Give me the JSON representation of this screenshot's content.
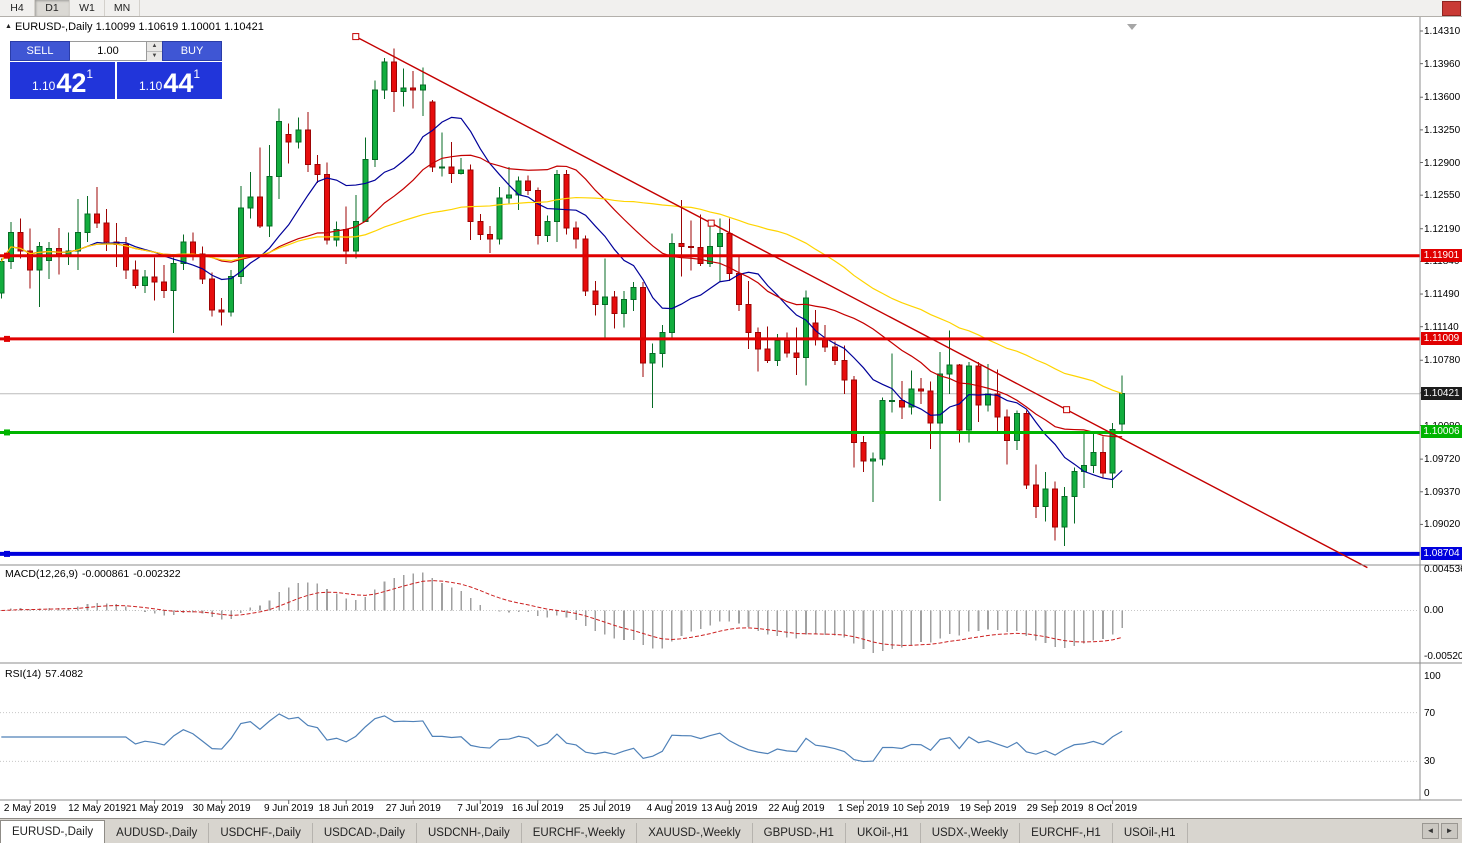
{
  "toolbar": {
    "timeframes": [
      {
        "label": "H4",
        "active": false
      },
      {
        "label": "D1",
        "active": true
      },
      {
        "label": "W1",
        "active": false
      },
      {
        "label": "MN",
        "active": false
      }
    ]
  },
  "chart": {
    "title": "EURUSD-,Daily 1.10099 1.10619 1.10001 1.10421",
    "symbol": "EURUSD-,Daily",
    "ohlc": {
      "open": "1.10099",
      "high": "1.10619",
      "low": "1.10001",
      "close": "1.10421"
    }
  },
  "trade_panel": {
    "sell_label": "SELL",
    "buy_label": "BUY",
    "volume": "1.00",
    "sell_price_prefix": "1.10",
    "sell_price_main": "42",
    "sell_price_sup": "1",
    "buy_price_prefix": "1.10",
    "buy_price_main": "44",
    "buy_price_sup": "1"
  },
  "chart_data": {
    "type": "candlestick",
    "x_scale": {
      "first_x": 1.3,
      "step": 9.58
    },
    "price_scale": {
      "max": 1.14385,
      "min": 1.0866
    },
    "price_ticks": [
      "1.14310",
      "1.13960",
      "1.13600",
      "1.13250",
      "1.12900",
      "1.12550",
      "1.12190",
      "1.11840",
      "1.11490",
      "1.11140",
      "1.10780",
      "1.10430",
      "1.10080",
      "1.09720",
      "1.09370",
      "1.09020"
    ],
    "date_ticks": [
      {
        "bar": 3,
        "label": "2 May 2019"
      },
      {
        "bar": 10,
        "label": "12 May 2019"
      },
      {
        "bar": 16,
        "label": "21 May 2019"
      },
      {
        "bar": 23,
        "label": "30 May 2019"
      },
      {
        "bar": 30,
        "label": "9 Jun 2019"
      },
      {
        "bar": 36,
        "label": "18 Jun 2019"
      },
      {
        "bar": 43,
        "label": "27 Jun 2019"
      },
      {
        "bar": 50,
        "label": "7 Jul 2019"
      },
      {
        "bar": 56,
        "label": "16 Jul 2019"
      },
      {
        "bar": 63,
        "label": "25 Jul 2019"
      },
      {
        "bar": 70,
        "label": "4 Aug 2019"
      },
      {
        "bar": 76,
        "label": "13 Aug 2019"
      },
      {
        "bar": 83,
        "label": "22 Aug 2019"
      },
      {
        "bar": 90,
        "label": "1 Sep 2019"
      },
      {
        "bar": 96,
        "label": "10 Sep 2019"
      },
      {
        "bar": 103,
        "label": "19 Sep 2019"
      },
      {
        "bar": 110,
        "label": "29 Sep 2019"
      },
      {
        "bar": 116,
        "label": "8 Oct 2019"
      }
    ],
    "candles": [
      [
        1.115,
        1.1187,
        1.1144,
        1.1184
      ],
      [
        1.1184,
        1.1226,
        1.1176,
        1.1215
      ],
      [
        1.1215,
        1.123,
        1.1187,
        1.1195
      ],
      [
        1.1195,
        1.1219,
        1.1155,
        1.1175
      ],
      [
        1.1175,
        1.1205,
        1.1135,
        1.12
      ],
      [
        1.1185,
        1.1205,
        1.1165,
        1.1198
      ],
      [
        1.1198,
        1.122,
        1.117,
        1.119
      ],
      [
        1.119,
        1.1215,
        1.118,
        1.1195
      ],
      [
        1.1195,
        1.1251,
        1.1175,
        1.1215
      ],
      [
        1.1215,
        1.1254,
        1.1205,
        1.1235
      ],
      [
        1.1235,
        1.1264,
        1.122,
        1.1225
      ],
      [
        1.1225,
        1.124,
        1.1195,
        1.1205
      ],
      [
        1.1205,
        1.1225,
        1.1178,
        1.1202
      ],
      [
        1.1202,
        1.121,
        1.1165,
        1.1175
      ],
      [
        1.1175,
        1.1185,
        1.1155,
        1.1158
      ],
      [
        1.1158,
        1.1175,
        1.115,
        1.1167
      ],
      [
        1.1167,
        1.1188,
        1.1142,
        1.1162
      ],
      [
        1.1162,
        1.118,
        1.1145,
        1.1153
      ],
      [
        1.1153,
        1.1188,
        1.1107,
        1.1182
      ],
      [
        1.1182,
        1.1213,
        1.1175,
        1.1205
      ],
      [
        1.1205,
        1.1215,
        1.1185,
        1.1192
      ],
      [
        1.1192,
        1.12,
        1.116,
        1.1165
      ],
      [
        1.1165,
        1.1172,
        1.1125,
        1.1132
      ],
      [
        1.1132,
        1.1145,
        1.1115,
        1.113
      ],
      [
        1.113,
        1.1175,
        1.1125,
        1.1168
      ],
      [
        1.1168,
        1.1265,
        1.116,
        1.1241
      ],
      [
        1.1241,
        1.128,
        1.123,
        1.1253
      ],
      [
        1.1253,
        1.1306,
        1.122,
        1.1222
      ],
      [
        1.1222,
        1.1309,
        1.121,
        1.1275
      ],
      [
        1.1275,
        1.1348,
        1.1251,
        1.1334
      ],
      [
        1.132,
        1.1332,
        1.1289,
        1.1312
      ],
      [
        1.1312,
        1.1338,
        1.1305,
        1.1325
      ],
      [
        1.1325,
        1.1344,
        1.128,
        1.1288
      ],
      [
        1.1288,
        1.1298,
        1.1268,
        1.1277
      ],
      [
        1.1277,
        1.129,
        1.1202,
        1.1207
      ],
      [
        1.1207,
        1.1227,
        1.12,
        1.1218
      ],
      [
        1.1218,
        1.1243,
        1.1181,
        1.1195
      ],
      [
        1.1195,
        1.1255,
        1.1187,
        1.1227
      ],
      [
        1.1227,
        1.1317,
        1.1226,
        1.1293
      ],
      [
        1.1293,
        1.1378,
        1.1285,
        1.1368
      ],
      [
        1.1368,
        1.1402,
        1.1358,
        1.1398
      ],
      [
        1.1398,
        1.1412,
        1.1344,
        1.1366
      ],
      [
        1.1366,
        1.1391,
        1.135,
        1.137
      ],
      [
        1.137,
        1.1388,
        1.1348,
        1.1368
      ],
      [
        1.1368,
        1.1392,
        1.134,
        1.1373
      ],
      [
        1.1355,
        1.1357,
        1.128,
        1.1285
      ],
      [
        1.1285,
        1.1322,
        1.1275,
        1.1285
      ],
      [
        1.1285,
        1.1312,
        1.1268,
        1.1278
      ],
      [
        1.1278,
        1.1295,
        1.1277,
        1.1282
      ],
      [
        1.1282,
        1.1288,
        1.1207,
        1.1227
      ],
      [
        1.1227,
        1.1235,
        1.1207,
        1.1213
      ],
      [
        1.1213,
        1.1222,
        1.1193,
        1.1208
      ],
      [
        1.1208,
        1.1264,
        1.1202,
        1.1252
      ],
      [
        1.1252,
        1.1285,
        1.1245,
        1.1255
      ],
      [
        1.1255,
        1.1275,
        1.1239,
        1.127
      ],
      [
        1.127,
        1.1276,
        1.1255,
        1.126
      ],
      [
        1.126,
        1.1263,
        1.1202,
        1.1212
      ],
      [
        1.1212,
        1.1233,
        1.1205,
        1.1227
      ],
      [
        1.1227,
        1.1282,
        1.1205,
        1.1277
      ],
      [
        1.1277,
        1.1282,
        1.1213,
        1.122
      ],
      [
        1.122,
        1.1227,
        1.1198,
        1.1208
      ],
      [
        1.1208,
        1.1212,
        1.1147,
        1.1152
      ],
      [
        1.1152,
        1.1163,
        1.1126,
        1.1138
      ],
      [
        1.1138,
        1.1187,
        1.1101,
        1.1146
      ],
      [
        1.1146,
        1.1152,
        1.1112,
        1.1128
      ],
      [
        1.1128,
        1.1152,
        1.1113,
        1.1143
      ],
      [
        1.1143,
        1.1162,
        1.1131,
        1.1156
      ],
      [
        1.1156,
        1.1162,
        1.106,
        1.1075
      ],
      [
        1.1075,
        1.1096,
        1.1027,
        1.1085
      ],
      [
        1.1085,
        1.1116,
        1.107,
        1.1108
      ],
      [
        1.1108,
        1.1214,
        1.1101,
        1.1203
      ],
      [
        1.1203,
        1.125,
        1.1168,
        1.12
      ],
      [
        1.12,
        1.1228,
        1.1174,
        1.1199
      ],
      [
        1.1199,
        1.1234,
        1.1179,
        1.1182
      ],
      [
        1.1182,
        1.1224,
        1.1178,
        1.12
      ],
      [
        1.12,
        1.123,
        1.1162,
        1.1214
      ],
      [
        1.1214,
        1.123,
        1.1163,
        1.1171
      ],
      [
        1.1171,
        1.1191,
        1.1131,
        1.1138
      ],
      [
        1.1138,
        1.1163,
        1.109,
        1.1108
      ],
      [
        1.1108,
        1.1113,
        1.1066,
        1.109
      ],
      [
        1.109,
        1.1114,
        1.1075,
        1.1078
      ],
      [
        1.1078,
        1.1106,
        1.1072,
        1.1099
      ],
      [
        1.1099,
        1.1108,
        1.1081,
        1.1086
      ],
      [
        1.1086,
        1.1113,
        1.1062,
        1.1081
      ],
      [
        1.1081,
        1.1153,
        1.1051,
        1.1145
      ],
      [
        1.1118,
        1.1132,
        1.1094,
        1.1101
      ],
      [
        1.1101,
        1.1116,
        1.1087,
        1.1092
      ],
      [
        1.1092,
        1.1098,
        1.1073,
        1.1078
      ],
      [
        1.1078,
        1.1094,
        1.1042,
        1.1057
      ],
      [
        1.1057,
        1.1061,
        1.0963,
        1.099
      ],
      [
        1.099,
        1.0997,
        1.0958,
        1.097
      ],
      [
        1.097,
        1.0979,
        1.0926,
        1.0972
      ],
      [
        1.0972,
        1.1038,
        1.0965,
        1.1035
      ],
      [
        1.1035,
        1.1085,
        1.1022,
        1.1035
      ],
      [
        1.1035,
        1.1056,
        1.1015,
        1.1028
      ],
      [
        1.1028,
        1.1067,
        1.102,
        1.1047
      ],
      [
        1.1047,
        1.1059,
        1.1031,
        1.1045
      ],
      [
        1.1045,
        1.1055,
        1.0983,
        1.1011
      ],
      [
        1.1011,
        1.1087,
        1.0927,
        1.1063
      ],
      [
        1.1063,
        1.111,
        1.1042,
        1.1073
      ],
      [
        1.1073,
        1.1074,
        1.099,
        1.1003
      ],
      [
        1.1003,
        1.1076,
        1.099,
        1.1072
      ],
      [
        1.1072,
        1.1076,
        1.1012,
        1.103
      ],
      [
        1.103,
        1.1074,
        1.1023,
        1.1042
      ],
      [
        1.1042,
        1.1068,
        1.1,
        1.1017
      ],
      [
        1.1017,
        1.1025,
        1.0966,
        1.0992
      ],
      [
        1.0992,
        1.1024,
        1.0982,
        1.1021
      ],
      [
        1.1021,
        1.1024,
        1.094,
        1.0944
      ],
      [
        1.0944,
        1.0966,
        1.0909,
        1.0921
      ],
      [
        1.0921,
        1.0958,
        1.0905,
        1.094
      ],
      [
        1.094,
        1.0948,
        1.0885,
        1.0899
      ],
      [
        1.0899,
        1.0942,
        1.0879,
        1.0932
      ],
      [
        1.0932,
        1.0963,
        1.0903,
        1.0959
      ],
      [
        1.0959,
        1.0999,
        1.0941,
        1.0965
      ],
      [
        1.0965,
        1.0999,
        1.0957,
        1.0979
      ],
      [
        1.0979,
        1.0996,
        1.0952,
        1.0957
      ],
      [
        1.0957,
        1.1011,
        1.0941,
        1.1004
      ],
      [
        1.10099,
        1.10619,
        1.10001,
        1.10421
      ]
    ],
    "candle_colors": {
      "up": "#12ad3e",
      "up_edge": "#076b26",
      "down": "#e70d0d",
      "down_edge": "#9d0404"
    },
    "moving_averages": [
      {
        "period": 10,
        "color": "#000099"
      },
      {
        "period": 22,
        "color": "#c40000"
      },
      {
        "period": 45,
        "color": "#ffd400"
      }
    ],
    "hlines": [
      {
        "price": 1.11901,
        "label": "1.11901",
        "color": "#e00000",
        "thickness": 3
      },
      {
        "price": 1.11009,
        "label": "1.11009",
        "color": "#e00000",
        "thickness": 3
      },
      {
        "price": 1.10006,
        "label": "1.10006",
        "color": "#00b400",
        "thickness": 3
      },
      {
        "price": 1.08704,
        "label": "1.08704",
        "color": "#0000dd",
        "thickness": 4
      }
    ],
    "current_price": {
      "value": 1.10421,
      "label": "1.10421",
      "badge_color": "#1c1c1c",
      "line_color": "#bcbcbc"
    },
    "trendline": {
      "color": "#c40000",
      "p1": {
        "bar": 37,
        "price": 1.1425
      },
      "p2": {
        "bar": 111.2,
        "price": 1.1025
      },
      "extend_bar": 142.6
    }
  },
  "macd": {
    "label": "MACD(12,26,9)",
    "value_main": "-0.000861",
    "value_signal": "-0.002322",
    "fast": 12,
    "slow": 26,
    "signal": 9,
    "scale_max": 0.004536,
    "scale_min": -0.005205,
    "scale_labels": [
      "0.004536",
      "0.00",
      "-0.005205"
    ],
    "histogram_color": "#a0a0a0",
    "signal_color": "#cc2222"
  },
  "rsi": {
    "label": "RSI(14)",
    "value": "57.4082",
    "period": 14,
    "levels": [
      70,
      30
    ],
    "scale_labels": [
      "100",
      "70",
      "30",
      "0"
    ],
    "line_color": "#4f81b8"
  },
  "tabs": [
    {
      "label": "EURUSD-,Daily",
      "active": true
    },
    {
      "label": "AUDUSD-,Daily",
      "active": false
    },
    {
      "label": "USDCHF-,Daily",
      "active": false
    },
    {
      "label": "USDCAD-,Daily",
      "active": false
    },
    {
      "label": "USDCNH-,Daily",
      "active": false
    },
    {
      "label": "EURCHF-,Weekly",
      "active": false
    },
    {
      "label": "XAUUSD-,Weekly",
      "active": false
    },
    {
      "label": "GBPUSD-,H1",
      "active": false
    },
    {
      "label": "UKOil-,H1",
      "active": false
    },
    {
      "label": "USDX-,Weekly",
      "active": false
    },
    {
      "label": "EURCHF-,H1",
      "active": false
    },
    {
      "label": "USOil-,H1",
      "active": false
    }
  ],
  "tab_arrows": {
    "left": "◄",
    "right": "►"
  }
}
